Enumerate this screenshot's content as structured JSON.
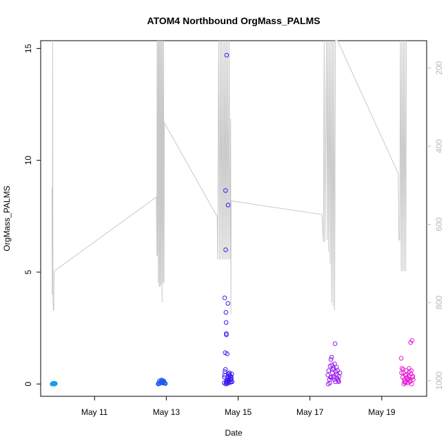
{
  "chart_data": {
    "type": "scatter",
    "title": "ATOM4 Northbound OrgMass_PALMS",
    "xlabel": "Date",
    "ylabel": "OrgMass_PALMS",
    "x_ticks": [
      "May 11",
      "May 13",
      "May 15",
      "May 17",
      "May 19"
    ],
    "y_ticks": [
      0,
      5,
      10,
      15
    ],
    "y_right_ticks": [
      200,
      400,
      600,
      800,
      1000
    ],
    "xlim": [
      "2016-05-09 12:00",
      "2016-05-20 06:00"
    ],
    "ylim": [
      -0.55,
      15.35
    ],
    "y_right_lim": [
      1040,
      130
    ],
    "y_right_reversed": true,
    "grid": false,
    "point_style": "open-circle",
    "colors": {
      "axis": "#000000",
      "secondary_axis": "#b8b8b8",
      "pressure_line": "#c8c8c8",
      "flight1": "#1a9fe8",
      "flight2": "#1f5cf0",
      "flight3": "#3a16ee",
      "flight4": "#9616ec",
      "flight5": "#e616d4"
    },
    "series": [
      {
        "color_key": "flight1",
        "x": [
          "2016-05-09 19:40",
          "2016-05-09 19:55",
          "2016-05-09 20:05",
          "2016-05-09 20:15",
          "2016-05-09 20:30",
          "2016-05-09 20:40",
          "2016-05-09 20:50",
          "2016-05-09 21:00",
          "2016-05-09 21:10",
          "2016-05-09 21:20",
          "2016-05-09 21:30",
          "2016-05-09 21:40",
          "2016-05-09 21:50"
        ],
        "y": [
          0.0,
          0.02,
          0.01,
          0.03,
          0.0,
          0.02,
          0.04,
          0.01,
          0.02,
          0.0,
          0.03,
          0.01,
          0.02
        ]
      },
      {
        "color_key": "flight2",
        "x": [
          "2016-05-12 18:30",
          "2016-05-12 18:50",
          "2016-05-12 19:10",
          "2016-05-12 19:30",
          "2016-05-12 19:50",
          "2016-05-12 20:10",
          "2016-05-12 20:30",
          "2016-05-12 20:50",
          "2016-05-12 21:10",
          "2016-05-12 21:30",
          "2016-05-12 21:50",
          "2016-05-12 22:10",
          "2016-05-12 22:30",
          "2016-05-12 22:50",
          "2016-05-12 23:10",
          "2016-05-12 19:20",
          "2016-05-12 20:40",
          "2016-05-12 21:40",
          "2016-05-12 22:20",
          "2016-05-12 23:20"
        ],
        "y": [
          0.0,
          0.03,
          0.05,
          0.02,
          0.08,
          0.1,
          0.06,
          0.12,
          0.15,
          0.09,
          0.04,
          0.07,
          0.11,
          0.05,
          0.03,
          0.14,
          0.18,
          0.16,
          0.13,
          0.02
        ]
      },
      {
        "color_key": "flight3",
        "x": [
          "2016-05-14 16:00",
          "2016-05-14 16:15",
          "2016-05-14 16:30",
          "2016-05-14 16:45",
          "2016-05-14 17:00",
          "2016-05-14 17:15",
          "2016-05-14 17:30",
          "2016-05-14 17:45",
          "2016-05-14 18:00",
          "2016-05-14 18:15",
          "2016-05-14 18:30",
          "2016-05-14 18:45",
          "2016-05-14 19:00",
          "2016-05-14 19:15",
          "2016-05-14 19:30",
          "2016-05-14 19:45",
          "2016-05-14 14:50",
          "2016-05-14 14:55",
          "2016-05-14 16:20",
          "2016-05-14 17:20",
          "2016-05-14 15:00",
          "2016-05-14 15:35",
          "2016-05-14 15:40",
          "2016-05-14 17:10",
          "2016-05-14 15:50",
          "2016-05-14 16:00",
          "2016-05-14 16:05",
          "2016-05-14 16:10",
          "2016-05-14 16:40",
          "2016-05-14 15:20",
          "2016-05-14 15:10",
          "2016-05-14 15:30",
          "2016-05-14 18:10",
          "2016-05-14 18:40",
          "2016-05-14 19:20",
          "2016-05-14 14:40",
          "2016-05-14 20:00",
          "2016-05-14 15:45",
          "2016-05-14 16:50",
          "2016-05-14 17:40"
        ],
        "y": [
          0.1,
          0.05,
          0.2,
          0.15,
          0.08,
          0.3,
          0.12,
          0.25,
          0.18,
          0.4,
          0.06,
          0.22,
          0.35,
          0.1,
          0.28,
          0.45,
          0.3,
          0.4,
          14.7,
          8.0,
          3.85,
          8.65,
          6.0,
          3.6,
          3.2,
          2.75,
          2.25,
          2.2,
          1.35,
          1.4,
          0.55,
          0.65,
          0.5,
          0.35,
          0.2,
          0.05,
          0.1,
          0.0,
          0.02,
          0.45
        ]
      },
      {
        "color_key": "flight4",
        "x": [
          "2016-05-17 12:00",
          "2016-05-17 12:30",
          "2016-05-17 13:00",
          "2016-05-17 13:30",
          "2016-05-17 14:00",
          "2016-05-17 14:30",
          "2016-05-17 15:00",
          "2016-05-17 15:30",
          "2016-05-17 16:00",
          "2016-05-17 16:30",
          "2016-05-17 17:00",
          "2016-05-17 17:30",
          "2016-05-17 18:00",
          "2016-05-17 18:30",
          "2016-05-17 19:00",
          "2016-05-17 19:30",
          "2016-05-17 20:00",
          "2016-05-17 13:15",
          "2016-05-17 14:15",
          "2016-05-17 15:15",
          "2016-05-17 16:15",
          "2016-05-17 17:15",
          "2016-05-17 18:15",
          "2016-05-17 19:15",
          "2016-05-17 12:15",
          "2016-05-17 16:45",
          "2016-05-17 17:45",
          "2016-05-17 14:45",
          "2016-05-17 13:45",
          "2016-05-17 18:45"
        ],
        "y": [
          0.4,
          0.6,
          0.2,
          0.8,
          1.1,
          1.2,
          0.5,
          0.3,
          0.7,
          0.9,
          0.1,
          0.45,
          0.25,
          0.6,
          0.15,
          0.35,
          0.5,
          0.05,
          0.3,
          0.65,
          0.2,
          0.55,
          0.4,
          0.1,
          0.0,
          1.8,
          0.75,
          0.85,
          0.3,
          0.2
        ]
      },
      {
        "color_key": "flight5",
        "x": [
          "2016-05-19 13:00",
          "2016-05-19 13:30",
          "2016-05-19 14:00",
          "2016-05-19 14:30",
          "2016-05-19 15:00",
          "2016-05-19 15:30",
          "2016-05-19 16:00",
          "2016-05-19 16:30",
          "2016-05-19 17:00",
          "2016-05-19 17:30",
          "2016-05-19 18:00",
          "2016-05-19 18:30",
          "2016-05-19 19:00",
          "2016-05-19 19:30",
          "2016-05-19 20:00",
          "2016-05-19 20:30",
          "2016-05-19 21:00",
          "2016-05-19 14:15",
          "2016-05-19 15:15",
          "2016-05-19 16:15",
          "2016-05-19 17:15",
          "2016-05-19 18:15",
          "2016-05-19 19:15",
          "2016-05-19 20:15",
          "2016-05-19 13:15",
          "2016-05-19 16:45",
          "2016-05-19 17:45",
          "2016-05-19 18:45",
          "2016-05-19 19:45",
          "2016-05-19 20:45",
          "2016-05-19 15:45",
          "2016-05-19 14:45"
        ],
        "y": [
          1.15,
          0.7,
          0.3,
          0.5,
          0.2,
          0.1,
          0.4,
          0.6,
          0.25,
          0.05,
          0.35,
          0.55,
          0.15,
          0.45,
          0.0,
          0.3,
          0.2,
          0.65,
          0.1,
          0.4,
          0.25,
          0.7,
          1.85,
          1.95,
          0.5,
          0.3,
          0.2,
          0.1,
          0.6,
          0.35,
          0.05,
          0.0
        ]
      }
    ],
    "pressure_profile": [
      [
        "2016-05-09 19:30",
        508
      ],
      [
        "2016-05-09 19:45",
        780
      ],
      [
        "2016-05-09 20:00",
        110
      ],
      [
        "2016-05-09 20:15",
        790
      ],
      [
        "2016-05-09 20:30",
        820
      ],
      [
        "2016-05-09 20:45",
        820
      ],
      [
        "2016-05-09 21:00",
        720
      ],
      [
        "2016-05-12 17:20",
        530
      ],
      [
        "2016-05-12 17:40",
        680
      ],
      [
        "2016-05-12 17:50",
        110
      ],
      [
        "2016-05-12 18:00",
        680
      ],
      [
        "2016-05-12 18:30",
        110
      ],
      [
        "2016-05-12 18:40",
        750
      ],
      [
        "2016-05-12 19:00",
        110
      ],
      [
        "2016-05-12 19:20",
        760
      ],
      [
        "2016-05-12 19:40",
        110
      ],
      [
        "2016-05-12 19:50",
        760
      ],
      [
        "2016-05-12 20:10",
        110
      ],
      [
        "2016-05-12 20:30",
        755
      ],
      [
        "2016-05-12 20:50",
        110
      ],
      [
        "2016-05-12 21:10",
        800
      ],
      [
        "2016-05-12 21:30",
        110
      ],
      [
        "2016-05-12 21:50",
        750
      ],
      [
        "2016-05-12 22:10",
        110
      ],
      [
        "2016-05-12 22:30",
        750
      ],
      [
        "2016-05-12 22:40",
        340
      ],
      [
        "2016-05-14 10:00",
        580
      ],
      [
        "2016-05-14 10:20",
        690
      ],
      [
        "2016-05-14 11:00",
        110
      ],
      [
        "2016-05-14 11:30",
        690
      ],
      [
        "2016-05-14 12:00",
        110
      ],
      [
        "2016-05-14 12:30",
        690
      ],
      [
        "2016-05-14 13:00",
        110
      ],
      [
        "2016-05-14 13:30",
        690
      ],
      [
        "2016-05-14 14:00",
        110
      ],
      [
        "2016-05-14 14:30",
        690
      ],
      [
        "2016-05-14 15:00",
        110
      ],
      [
        "2016-05-14 15:30",
        690
      ],
      [
        "2016-05-14 16:00",
        110
      ],
      [
        "2016-05-14 16:30",
        690
      ],
      [
        "2016-05-14 17:00",
        110
      ],
      [
        "2016-05-14 17:30",
        690
      ],
      [
        "2016-05-14 18:00",
        110
      ],
      [
        "2016-05-14 18:30",
        690
      ],
      [
        "2016-05-14 19:00",
        330
      ],
      [
        "2016-05-14 19:10",
        830
      ],
      [
        "2016-05-14 19:20",
        540
      ],
      [
        "2016-05-17 08:00",
        575
      ],
      [
        "2016-05-17 09:00",
        645
      ],
      [
        "2016-05-17 09:30",
        110
      ],
      [
        "2016-05-17 10:00",
        645
      ],
      [
        "2016-05-17 11:00",
        110
      ],
      [
        "2016-05-17 11:30",
        640
      ],
      [
        "2016-05-17 12:00",
        110
      ],
      [
        "2016-05-17 12:30",
        670
      ],
      [
        "2016-05-17 13:00",
        110
      ],
      [
        "2016-05-17 13:30",
        700
      ],
      [
        "2016-05-17 14:00",
        110
      ],
      [
        "2016-05-17 14:30",
        800
      ],
      [
        "2016-05-17 15:00",
        110
      ],
      [
        "2016-05-17 15:30",
        810
      ],
      [
        "2016-05-17 16:00",
        110
      ],
      [
        "2016-05-17 16:30",
        820
      ],
      [
        "2016-05-17 17:00",
        110
      ],
      [
        "2016-05-17 18:30",
        110
      ],
      [
        "2016-05-19 11:00",
        470
      ],
      [
        "2016-05-19 11:30",
        640
      ],
      [
        "2016-05-19 12:00",
        640
      ],
      [
        "2016-05-19 12:30",
        110
      ],
      [
        "2016-05-19 13:00",
        720
      ],
      [
        "2016-05-19 13:30",
        110
      ],
      [
        "2016-05-19 14:00",
        720
      ],
      [
        "2016-05-19 14:30",
        110
      ],
      [
        "2016-05-19 15:00",
        720
      ],
      [
        "2016-05-19 15:30",
        110
      ],
      [
        "2016-05-19 16:00",
        720
      ],
      [
        "2016-05-19 16:30",
        110
      ]
    ]
  }
}
